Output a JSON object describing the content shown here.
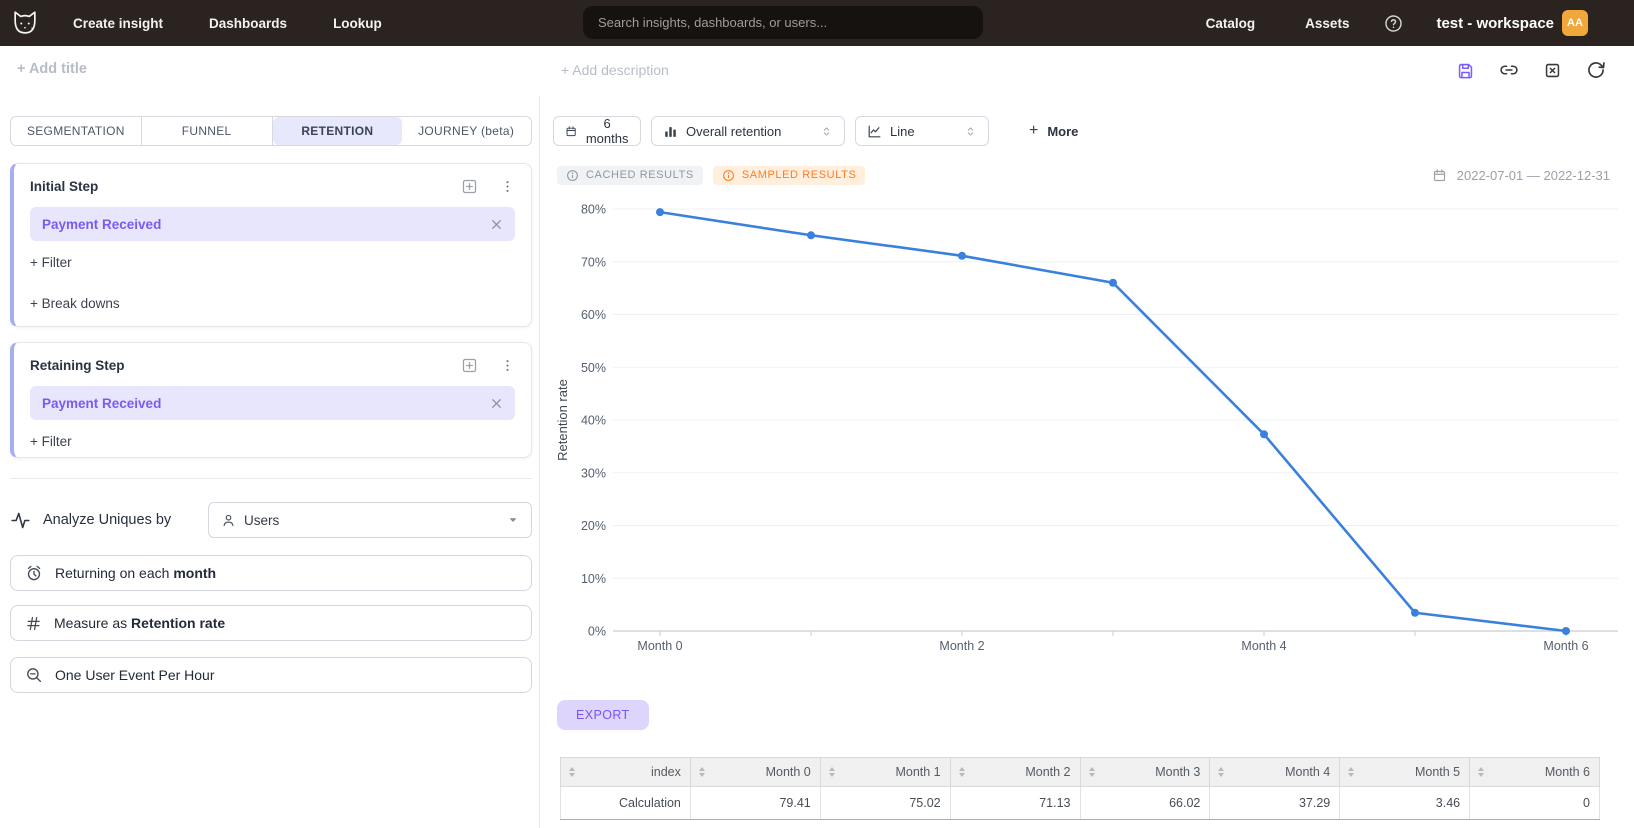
{
  "navbar": {
    "links": [
      "Create insight",
      "Dashboards",
      "Lookup"
    ],
    "search": {
      "placeholder": "Search insights, dashboards, or users..."
    },
    "right_links": [
      "Catalog",
      "Assets"
    ],
    "workspace_name": "test - workspace",
    "avatar_initials": "AA"
  },
  "titlebar": {
    "add_title": "+ Add title",
    "add_description": "+ Add description"
  },
  "sidebar": {
    "tabs": [
      {
        "label": "SEGMENTATION",
        "active": false
      },
      {
        "label": "FUNNEL",
        "active": false
      },
      {
        "label": "RETENTION",
        "active": true
      },
      {
        "label": "JOURNEY (beta)",
        "active": false
      }
    ],
    "initial_step": {
      "title": "Initial Step",
      "event": "Payment Received",
      "add_filter": "+ Filter",
      "add_breakdowns": "+ Break downs"
    },
    "retaining_step": {
      "title": "Retaining Step",
      "event": "Payment Received",
      "add_filter": "+ Filter"
    },
    "analyze": {
      "label": "Analyze Uniques by",
      "value": "Users"
    },
    "period_button": {
      "prefix": "Returning on each ",
      "value": "month"
    },
    "measure_button": {
      "prefix": "Measure as ",
      "value": "Retention rate"
    },
    "dedupe_button": {
      "label": "One User Event Per Hour"
    }
  },
  "toolbar": {
    "date_range_button": "6 months",
    "retention_select": "Overall retention",
    "chart_type_select": "Line",
    "more_plus": "+",
    "more_button": "More"
  },
  "status": {
    "cached_badge": "CACHED RESULTS",
    "sampled_badge": "SAMPLED RESULTS",
    "date_range": "2022-07-01 — 2022-12-31"
  },
  "chart_data": {
    "type": "line",
    "title": "",
    "x": [
      "Month 0",
      "Month 1",
      "Month 2",
      "Month 3",
      "Month 4",
      "Month 5",
      "Month 6"
    ],
    "series": [
      {
        "name": "Retention rate",
        "values": [
          79.41,
          75.02,
          71.13,
          66.02,
          37.29,
          3.46,
          0
        ]
      }
    ],
    "xlabel": "",
    "ylabel": "Retention rate",
    "ylim": [
      0,
      80
    ],
    "ytick_step": 10,
    "ytick_suffix": "%",
    "xticks_shown": [
      "Month 0",
      "Month 2",
      "Month 4",
      "Month 6"
    ],
    "grid": true,
    "legend": "none",
    "line_color": "#3a81dd"
  },
  "export_label": "EXPORT",
  "table": {
    "columns": [
      "index",
      "Month 0",
      "Month 1",
      "Month 2",
      "Month 3",
      "Month 4",
      "Month 5",
      "Month 6"
    ],
    "rows": [
      [
        "Calculation",
        "79.41",
        "75.02",
        "71.13",
        "66.02",
        "37.29",
        "3.46",
        "0"
      ]
    ]
  },
  "colors": {
    "navbar_bg": "#2b2320",
    "accent_purple": "#7c5cfa",
    "chip_bg": "#e8e6fc",
    "line_blue": "#3a81dd",
    "sampled_orange": "#fb7d28",
    "avatar_amber": "#f0a73c"
  }
}
